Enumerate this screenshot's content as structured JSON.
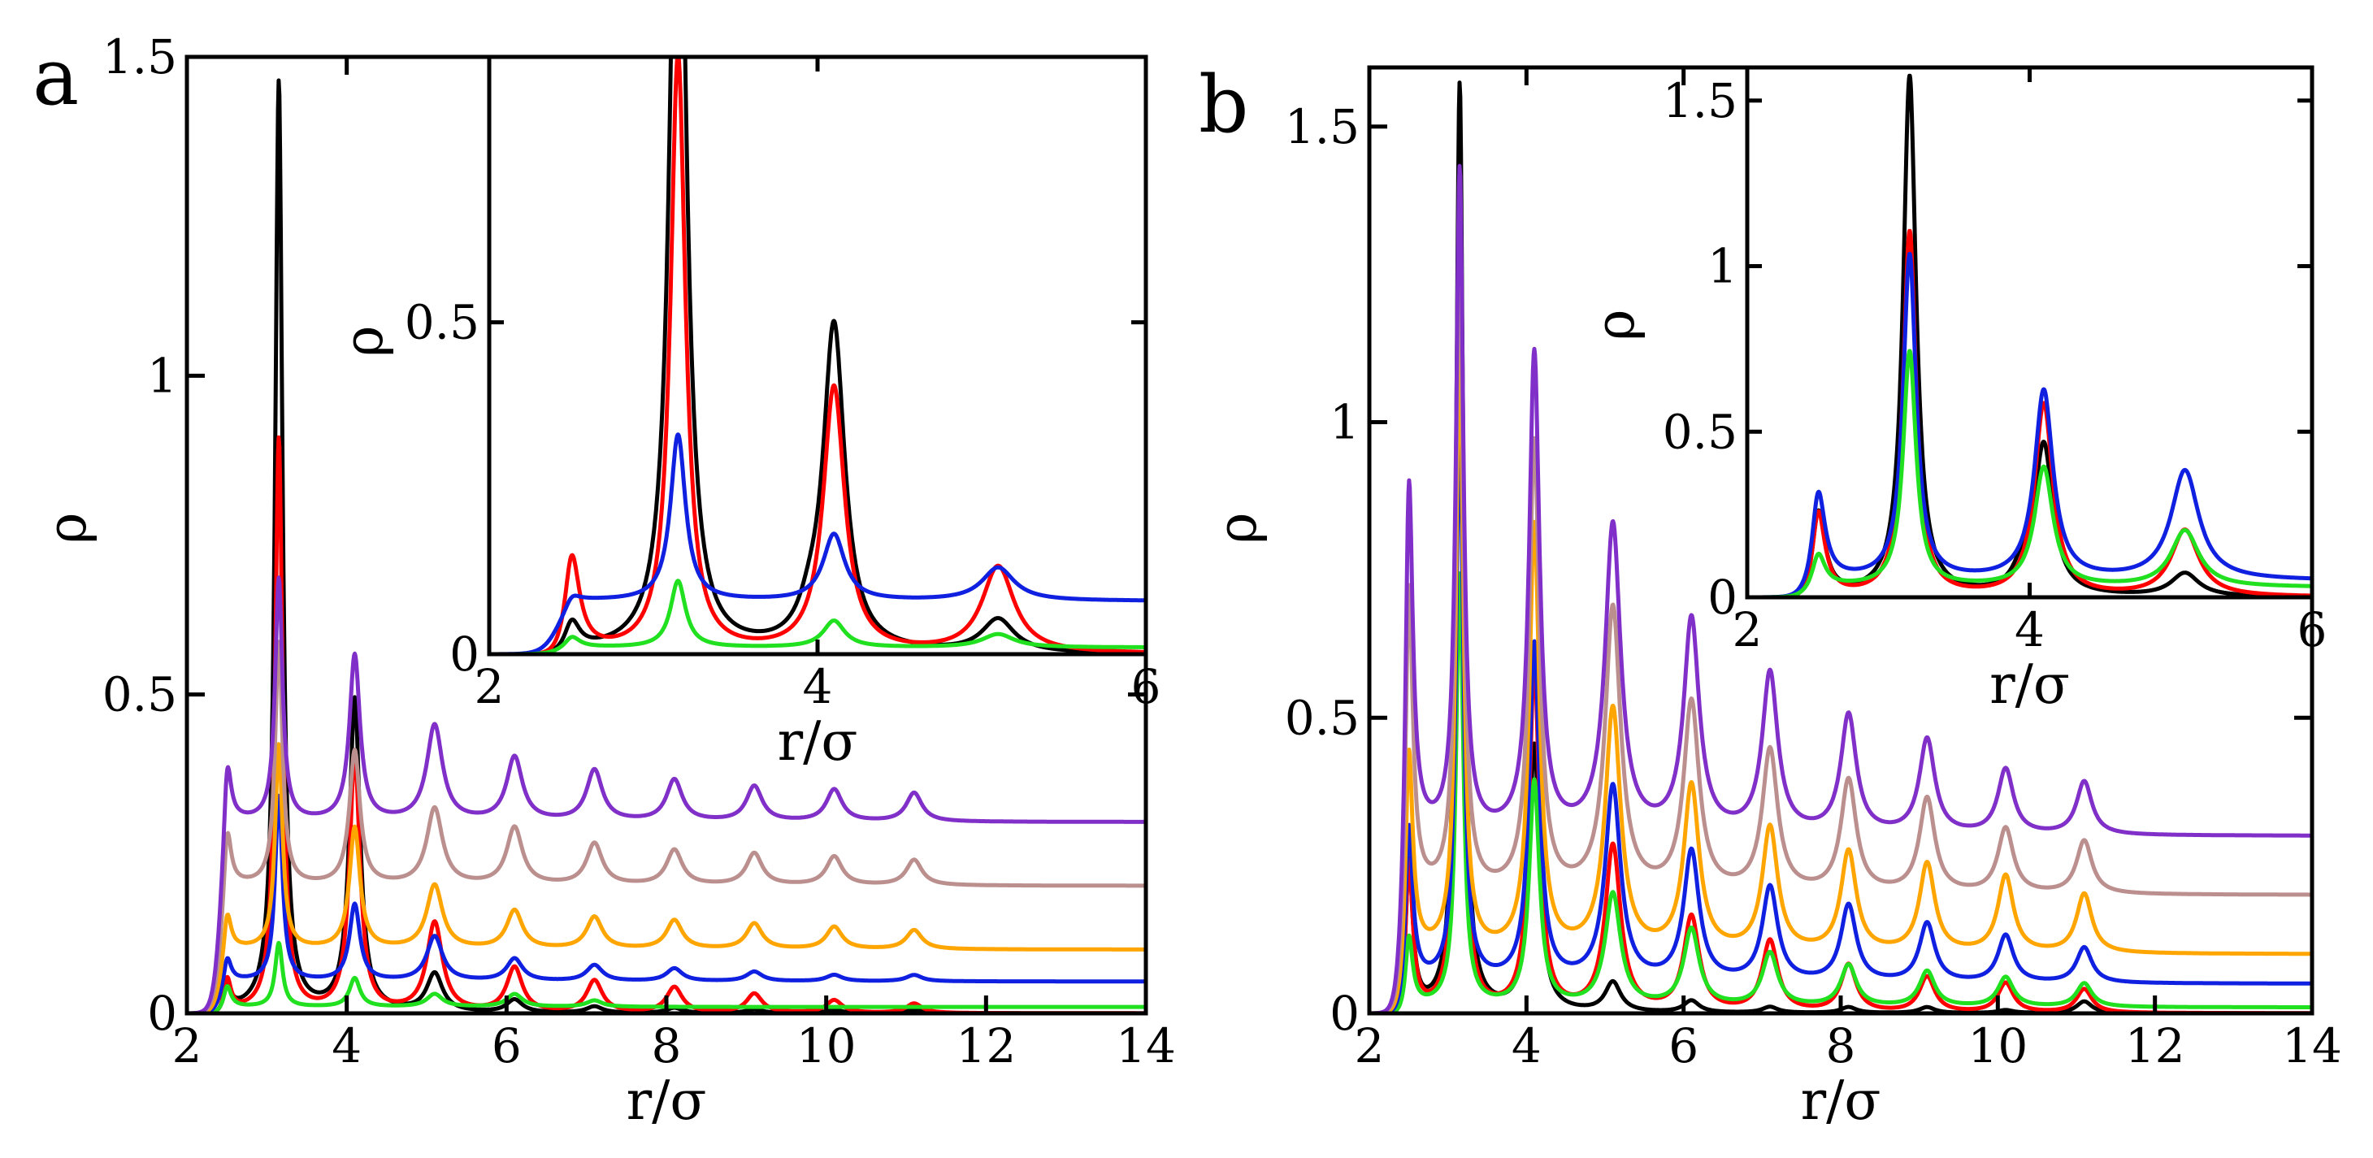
{
  "colors": {
    "black": "#000000",
    "red": "#ff0000",
    "blue": "#1020e0",
    "green": "#20e020",
    "orange": "#ffa500",
    "rosy": "#bc8f8f",
    "purple": "#8030c8"
  },
  "chart_data": [
    {
      "panel": "a",
      "type": "line",
      "xlabel": "r/σ",
      "ylabel": "ρ",
      "xlim": [
        2,
        14
      ],
      "ylim": [
        0,
        1.5
      ],
      "xticks": [
        "2",
        "4",
        "6",
        "8",
        "10",
        "12",
        "14"
      ],
      "yticks": [
        "0",
        "0.5",
        "1",
        "1.5"
      ],
      "series": [
        {
          "color": "black",
          "offset": 0,
          "peaks": [
            [
              2.5,
              0.045
            ],
            [
              3.15,
              1.46
            ],
            [
              4.1,
              0.49
            ],
            [
              5.1,
              0.06
            ],
            [
              6.1,
              0.02
            ],
            [
              7.1,
              0.01
            ],
            [
              8.1,
              0.008
            ],
            [
              9.1,
              0.006
            ],
            [
              10.1,
              0.005
            ],
            [
              11.1,
              0.005
            ]
          ]
        },
        {
          "color": "red",
          "offset": 0,
          "peaks": [
            [
              2.5,
              0.06
            ],
            [
              3.15,
              0.9
            ],
            [
              4.1,
              0.4
            ],
            [
              5.1,
              0.14
            ],
            [
              6.1,
              0.07
            ],
            [
              7.1,
              0.05
            ],
            [
              8.1,
              0.04
            ],
            [
              9.1,
              0.03
            ],
            [
              10.1,
              0.02
            ],
            [
              11.1,
              0.015
            ]
          ]
        },
        {
          "color": "green",
          "offset": 0.01,
          "peaks": [
            [
              2.5,
              0.05
            ],
            [
              3.15,
              0.11
            ],
            [
              4.1,
              0.055
            ],
            [
              5.1,
              0.03
            ],
            [
              6.1,
              0.03
            ],
            [
              7.1,
              0.02
            ]
          ]
        },
        {
          "color": "blue",
          "offset": 0.05,
          "peaks": [
            [
              2.5,
              0.1
            ],
            [
              3.15,
              0.34
            ],
            [
              4.1,
              0.17
            ],
            [
              5.1,
              0.12
            ],
            [
              6.1,
              0.085
            ],
            [
              7.1,
              0.075
            ],
            [
              8.1,
              0.07
            ],
            [
              9.1,
              0.065
            ],
            [
              10.1,
              0.06
            ],
            [
              11.1,
              0.06
            ]
          ]
        },
        {
          "color": "orange",
          "offset": 0.1,
          "peaks": [
            [
              2.5,
              0.18
            ],
            [
              3.15,
              0.42
            ],
            [
              4.1,
              0.29
            ],
            [
              5.1,
              0.2
            ],
            [
              6.1,
              0.16
            ],
            [
              7.1,
              0.15
            ],
            [
              8.1,
              0.145
            ],
            [
              9.1,
              0.14
            ],
            [
              10.1,
              0.135
            ],
            [
              11.1,
              0.13
            ]
          ]
        },
        {
          "color": "rosy",
          "offset": 0.2,
          "peaks": [
            [
              2.5,
              0.33
            ],
            [
              3.15,
              0.58
            ],
            [
              4.1,
              0.41
            ],
            [
              5.1,
              0.32
            ],
            [
              6.1,
              0.29
            ],
            [
              7.1,
              0.265
            ],
            [
              8.1,
              0.255
            ],
            [
              9.1,
              0.25
            ],
            [
              10.1,
              0.245
            ],
            [
              11.1,
              0.24
            ]
          ]
        },
        {
          "color": "purple",
          "offset": 0.3,
          "peaks": [
            [
              2.5,
              0.45
            ],
            [
              3.15,
              0.68
            ],
            [
              4.1,
              0.56
            ],
            [
              5.1,
              0.45
            ],
            [
              6.1,
              0.4
            ],
            [
              7.1,
              0.38
            ],
            [
              8.1,
              0.365
            ],
            [
              9.1,
              0.355
            ],
            [
              10.1,
              0.35
            ],
            [
              11.1,
              0.345
            ]
          ]
        }
      ],
      "inset": {
        "xlabel": "r/σ",
        "ylabel": "ρ",
        "xlim": [
          2,
          6
        ],
        "ylim": [
          0,
          0.9
        ],
        "xticks": [
          "2",
          "4",
          "6"
        ],
        "yticks": [
          "0",
          "0.5"
        ],
        "series": [
          {
            "color": "black",
            "offset": 0,
            "peaks": [
              [
                2.5,
                0.05
              ],
              [
                3.15,
                1.46
              ],
              [
                4.1,
                0.49
              ],
              [
                5.1,
                0.05
              ],
              [
                3.95,
                0.03
              ]
            ]
          },
          {
            "color": "red",
            "offset": 0,
            "peaks": [
              [
                2.5,
                0.17
              ],
              [
                3.15,
                0.9
              ],
              [
                4.1,
                0.4
              ],
              [
                5.1,
                0.13
              ]
            ]
          },
          {
            "color": "blue",
            "offset": 0.08,
            "peaks": [
              [
                2.5,
                0.1
              ],
              [
                3.15,
                0.33
              ],
              [
                4.1,
                0.18
              ],
              [
                5.1,
                0.13
              ]
            ]
          },
          {
            "color": "green",
            "offset": 0.01,
            "peaks": [
              [
                2.5,
                0.03
              ],
              [
                3.15,
                0.11
              ],
              [
                4.1,
                0.05
              ],
              [
                5.1,
                0.03
              ]
            ]
          }
        ]
      }
    },
    {
      "panel": "b",
      "type": "line",
      "xlabel": "r/σ",
      "ylabel": "ρ",
      "xlim": [
        2,
        14
      ],
      "ylim": [
        0,
        1.6
      ],
      "xticks": [
        "2",
        "4",
        "6",
        "8",
        "10",
        "12",
        "14"
      ],
      "yticks": [
        "0",
        "0.5",
        "1",
        "1.5"
      ],
      "series": [
        {
          "color": "black",
          "offset": 0,
          "peaks": [
            [
              2.5,
              0.3
            ],
            [
              3.15,
              1.57
            ],
            [
              4.1,
              0.45
            ],
            [
              5.1,
              0.05
            ],
            [
              6.1,
              0.02
            ],
            [
              7.1,
              0.01
            ],
            [
              8.1,
              0.01
            ],
            [
              9.1,
              0.01
            ],
            [
              10.1,
              0.005
            ],
            [
              11.1,
              0.02
            ]
          ]
        },
        {
          "color": "red",
          "offset": 0,
          "peaks": [
            [
              2.5,
              0.3
            ],
            [
              3.15,
              1.12
            ],
            [
              4.1,
              0.58
            ],
            [
              5.1,
              0.28
            ],
            [
              6.1,
              0.16
            ],
            [
              7.1,
              0.12
            ],
            [
              8.1,
              0.08
            ],
            [
              9.1,
              0.06
            ],
            [
              10.1,
              0.05
            ],
            [
              11.1,
              0.04
            ]
          ]
        },
        {
          "color": "green",
          "offset": 0.01,
          "peaks": [
            [
              2.5,
              0.15
            ],
            [
              3.15,
              0.74
            ],
            [
              4.1,
              0.39
            ],
            [
              5.1,
              0.2
            ],
            [
              6.1,
              0.14
            ],
            [
              7.1,
              0.1
            ],
            [
              8.1,
              0.08
            ],
            [
              9.1,
              0.07
            ],
            [
              10.1,
              0.06
            ],
            [
              11.1,
              0.05
            ]
          ]
        },
        {
          "color": "blue",
          "offset": 0.05,
          "peaks": [
            [
              2.5,
              0.37
            ],
            [
              3.15,
              1.0
            ],
            [
              4.1,
              0.62
            ],
            [
              5.1,
              0.38
            ],
            [
              6.1,
              0.27
            ],
            [
              7.1,
              0.21
            ],
            [
              8.1,
              0.18
            ],
            [
              9.1,
              0.15
            ],
            [
              10.1,
              0.13
            ],
            [
              11.1,
              0.11
            ]
          ]
        },
        {
          "color": "orange",
          "offset": 0.1,
          "peaks": [
            [
              2.5,
              0.52
            ],
            [
              3.15,
              1.14
            ],
            [
              4.1,
              0.82
            ],
            [
              5.1,
              0.51
            ],
            [
              6.1,
              0.38
            ],
            [
              7.1,
              0.31
            ],
            [
              8.1,
              0.27
            ],
            [
              9.1,
              0.25
            ],
            [
              10.1,
              0.23
            ],
            [
              11.1,
              0.2
            ]
          ]
        },
        {
          "color": "rosy",
          "offset": 0.2,
          "peaks": [
            [
              2.5,
              0.85
            ],
            [
              3.15,
              1.32
            ],
            [
              4.1,
              0.96
            ],
            [
              5.1,
              0.68
            ],
            [
              6.1,
              0.52
            ],
            [
              7.1,
              0.44
            ],
            [
              8.1,
              0.39
            ],
            [
              9.1,
              0.36
            ],
            [
              10.1,
              0.31
            ],
            [
              11.1,
              0.29
            ]
          ]
        },
        {
          "color": "purple",
          "offset": 0.3,
          "peaks": [
            [
              2.5,
              1.06
            ],
            [
              3.15,
              1.42
            ],
            [
              4.1,
              1.11
            ],
            [
              5.1,
              0.82
            ],
            [
              6.1,
              0.66
            ],
            [
              7.1,
              0.57
            ],
            [
              8.1,
              0.5
            ],
            [
              9.1,
              0.46
            ],
            [
              10.1,
              0.41
            ],
            [
              11.1,
              0.39
            ]
          ]
        }
      ],
      "inset": {
        "xlabel": "r/σ",
        "ylabel": "ρ",
        "xlim": [
          2,
          6
        ],
        "ylim": [
          0,
          1.6
        ],
        "xticks": [
          "2",
          "4",
          "6"
        ],
        "yticks": [
          "0",
          "0.5",
          "1",
          "1.5"
        ],
        "series": [
          {
            "color": "black",
            "offset": 0,
            "peaks": [
              [
                2.5,
                0.3
              ],
              [
                3.15,
                1.57
              ],
              [
                4.1,
                0.45
              ],
              [
                5.1,
                0.07
              ],
              [
                3.95,
                0.06
              ]
            ]
          },
          {
            "color": "red",
            "offset": 0,
            "peaks": [
              [
                2.5,
                0.3
              ],
              [
                3.15,
                1.1
              ],
              [
                4.1,
                0.58
              ],
              [
                5.1,
                0.2
              ]
            ]
          },
          {
            "color": "blue",
            "offset": 0.05,
            "peaks": [
              [
                2.5,
                0.37
              ],
              [
                3.15,
                1.03
              ],
              [
                4.1,
                0.62
              ],
              [
                5.1,
                0.38
              ]
            ]
          },
          {
            "color": "green",
            "offset": 0.03,
            "peaks": [
              [
                2.5,
                0.15
              ],
              [
                3.15,
                0.74
              ],
              [
                4.1,
                0.39
              ],
              [
                5.1,
                0.2
              ]
            ]
          }
        ]
      }
    }
  ]
}
